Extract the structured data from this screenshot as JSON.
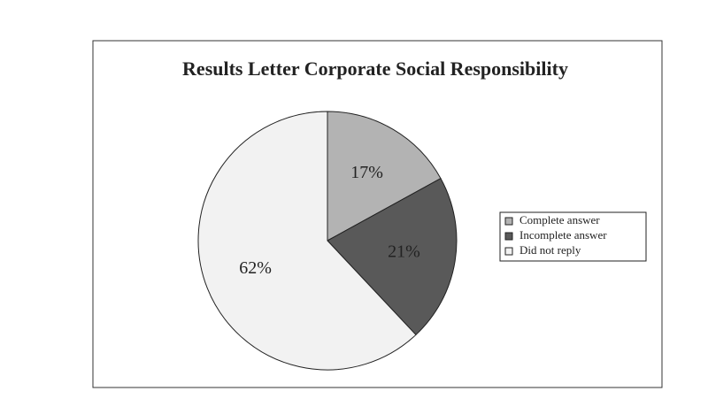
{
  "chart_data": {
    "type": "pie",
    "title": "Results Letter Corporate Social Responsibility",
    "categories": [
      "Complete answer",
      "Incomplete answer",
      "Did not reply"
    ],
    "values": [
      17,
      21,
      62
    ],
    "value_labels": [
      "17%",
      "21%",
      "62%"
    ],
    "colors": [
      "#b3b3b3",
      "#595959",
      "#f2f2f2"
    ],
    "legend": "right"
  }
}
